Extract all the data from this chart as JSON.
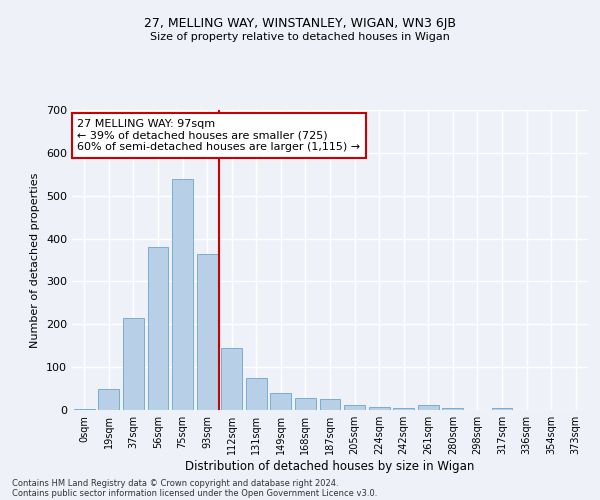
{
  "title1": "27, MELLING WAY, WINSTANLEY, WIGAN, WN3 6JB",
  "title2": "Size of property relative to detached houses in Wigan",
  "xlabel": "Distribution of detached houses by size in Wigan",
  "ylabel": "Number of detached properties",
  "categories": [
    "0sqm",
    "19sqm",
    "37sqm",
    "56sqm",
    "75sqm",
    "93sqm",
    "112sqm",
    "131sqm",
    "149sqm",
    "168sqm",
    "187sqm",
    "205sqm",
    "224sqm",
    "242sqm",
    "261sqm",
    "280sqm",
    "298sqm",
    "317sqm",
    "336sqm",
    "354sqm",
    "373sqm"
  ],
  "values": [
    2,
    50,
    215,
    380,
    540,
    365,
    145,
    75,
    40,
    28,
    25,
    12,
    8,
    5,
    12,
    5,
    0,
    4,
    0,
    0,
    0
  ],
  "bar_color": "#b8cfe8",
  "bar_edge_color": "#7aadd4",
  "annotation_text": "27 MELLING WAY: 97sqm\n← 39% of detached houses are smaller (725)\n60% of semi-detached houses are larger (1,115) →",
  "annotation_box_color": "#ffffff",
  "annotation_box_edge_color": "#cc0000",
  "vline_color": "#cc0000",
  "background_color": "#eef2f8",
  "grid_color": "#ffffff",
  "footer_line1": "Contains HM Land Registry data © Crown copyright and database right 2024.",
  "footer_line2": "Contains public sector information licensed under the Open Government Licence v3.0.",
  "ylim": [
    0,
    700
  ],
  "yticks": [
    0,
    100,
    200,
    300,
    400,
    500,
    600,
    700
  ]
}
